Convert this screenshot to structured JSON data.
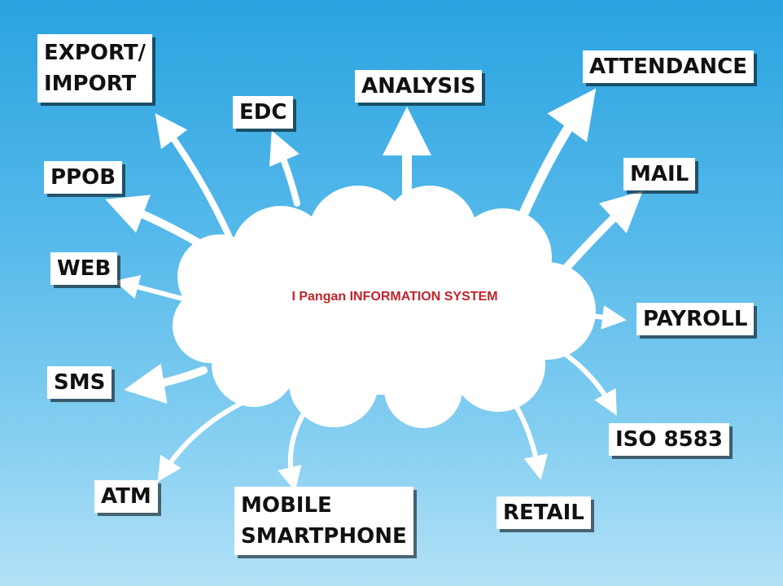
{
  "center": {
    "title": "I Pangan INFORMATION SYSTEM"
  },
  "nodes": {
    "export_import": "EXPORT/\nIMPORT",
    "edc": "EDC",
    "analysis": "ANALYSIS",
    "attendance": "ATTENDANCE",
    "ppob": "PPOB",
    "mail": "MAIL",
    "web": "WEB",
    "payroll": "PAYROLL",
    "sms": "SMS",
    "iso8583": "ISO 8583",
    "atm": "ATM",
    "mobile_smartphone": "MOBILE\nSMARTPHONE",
    "retail": "RETAIL"
  },
  "colors": {
    "title": "#c0242b",
    "arrow": "#ffffff",
    "cloud": "#ffffff",
    "background_top": "#2aa3e0",
    "background_bottom": "#b3e1f7"
  }
}
